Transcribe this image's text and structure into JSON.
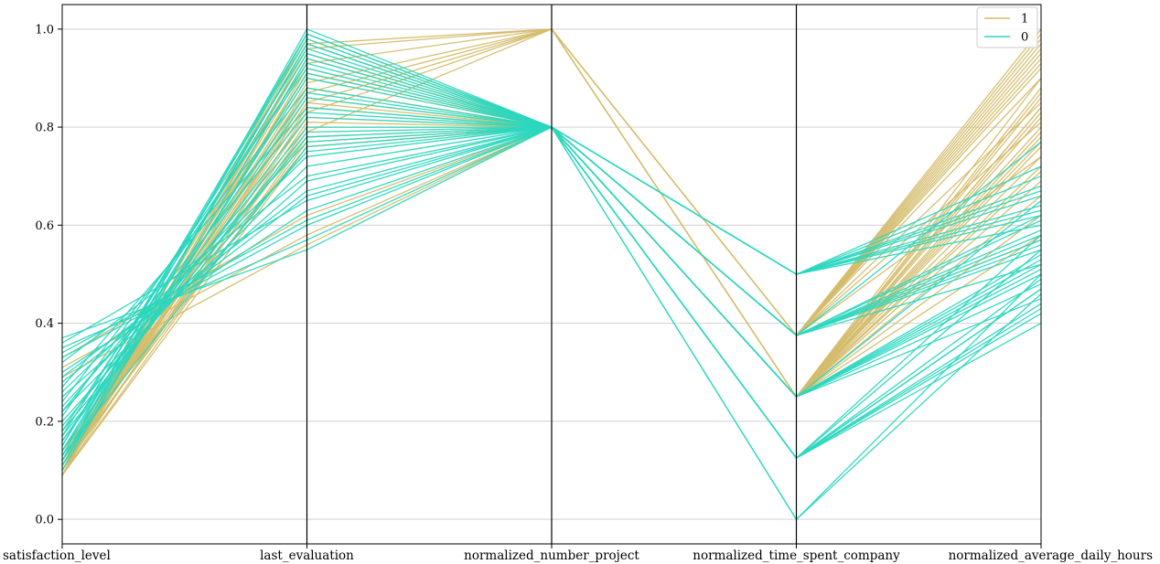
{
  "chart_data": {
    "type": "parallel_coordinates",
    "title": "",
    "axes": [
      "satisfaction_level",
      "last_evaluation",
      "normalized_number_project",
      "normalized_time_spent_company",
      "normalized_average_daily_hours"
    ],
    "ylim": [
      -0.05,
      1.05
    ],
    "yticks": [
      0.0,
      0.2,
      0.4,
      0.6,
      0.8,
      1.0
    ],
    "ytick_labels": [
      "0.0",
      "0.2",
      "0.4",
      "0.6",
      "0.8",
      "1.0"
    ],
    "grid": true,
    "legend": {
      "placement": "top-right"
    },
    "series": [
      {
        "name": "1",
        "color": "#d4bc6a",
        "lines": [
          [
            0.09,
            0.76,
            0.8,
            0.25,
            0.71
          ],
          [
            0.1,
            0.8,
            0.8,
            0.25,
            0.74
          ],
          [
            0.11,
            0.84,
            0.8,
            0.25,
            0.78
          ],
          [
            0.1,
            0.88,
            0.8,
            0.25,
            0.8
          ],
          [
            0.09,
            0.92,
            0.8,
            0.25,
            0.84
          ],
          [
            0.12,
            0.95,
            0.8,
            0.25,
            0.86
          ],
          [
            0.1,
            0.98,
            0.8,
            0.25,
            0.9
          ],
          [
            0.09,
            0.78,
            0.8,
            0.375,
            0.93
          ],
          [
            0.11,
            0.82,
            0.8,
            0.375,
            0.95
          ],
          [
            0.1,
            0.86,
            0.8,
            0.375,
            0.97
          ],
          [
            0.12,
            0.9,
            0.8,
            0.375,
            0.99
          ],
          [
            0.09,
            0.94,
            0.8,
            0.375,
            1.0
          ],
          [
            0.11,
            0.97,
            0.8,
            0.25,
            0.88
          ],
          [
            0.1,
            0.85,
            0.8,
            0.25,
            0.83
          ],
          [
            0.13,
            0.91,
            0.8,
            0.375,
            0.92
          ],
          [
            0.09,
            0.96,
            1.0,
            0.375,
            0.96
          ],
          [
            0.1,
            0.93,
            1.0,
            0.375,
            0.9
          ],
          [
            0.11,
            0.89,
            1.0,
            0.25,
            0.87
          ],
          [
            0.09,
            0.83,
            1.0,
            0.25,
            0.82
          ],
          [
            0.12,
            0.79,
            1.0,
            0.375,
            0.94
          ],
          [
            0.1,
            0.87,
            1.0,
            0.375,
            0.85
          ],
          [
            0.11,
            0.97,
            1.0,
            0.25,
            0.79
          ],
          [
            0.1,
            0.81,
            0.8,
            0.25,
            0.76
          ],
          [
            0.09,
            0.99,
            0.8,
            0.375,
            0.98
          ],
          [
            0.11,
            0.77,
            0.8,
            0.25,
            0.72
          ],
          [
            0.1,
            0.91,
            0.8,
            0.375,
            0.81
          ],
          [
            0.12,
            0.85,
            1.0,
            0.25,
            0.77
          ],
          [
            0.09,
            0.94,
            0.8,
            0.25,
            0.69
          ],
          [
            0.33,
            0.62,
            0.8,
            0.25,
            0.66
          ],
          [
            0.31,
            0.58,
            0.8,
            0.25,
            0.62
          ],
          [
            0.29,
            0.56,
            0.8,
            0.375,
            0.57
          ],
          [
            0.14,
            0.76,
            0.8,
            0.25,
            0.58
          ],
          [
            0.12,
            0.88,
            0.8,
            0.375,
            0.74
          ],
          [
            0.1,
            0.95,
            0.8,
            0.25,
            0.84
          ]
        ]
      },
      {
        "name": "0",
        "color": "#2bd7bf",
        "lines": [
          [
            0.37,
            0.55,
            0.8,
            0.5,
            0.64
          ],
          [
            0.35,
            0.57,
            0.8,
            0.375,
            0.52
          ],
          [
            0.33,
            0.6,
            0.8,
            0.25,
            0.48
          ],
          [
            0.3,
            0.63,
            0.8,
            0.125,
            0.44
          ],
          [
            0.28,
            0.66,
            0.8,
            0.5,
            0.67
          ],
          [
            0.25,
            0.69,
            0.8,
            0.375,
            0.55
          ],
          [
            0.22,
            0.72,
            0.8,
            0.25,
            0.5
          ],
          [
            0.2,
            0.75,
            0.8,
            0.125,
            0.42
          ],
          [
            0.18,
            0.78,
            0.8,
            0.5,
            0.6
          ],
          [
            0.16,
            0.82,
            0.8,
            0.375,
            0.58
          ],
          [
            0.14,
            0.86,
            0.8,
            0.25,
            0.53
          ],
          [
            0.12,
            0.9,
            0.8,
            0.125,
            0.47
          ],
          [
            0.1,
            0.94,
            0.8,
            0.5,
            0.62
          ],
          [
            0.11,
            0.97,
            0.8,
            0.375,
            0.56
          ],
          [
            0.13,
            0.99,
            0.8,
            0.25,
            0.45
          ],
          [
            0.12,
            1.0,
            0.8,
            0.125,
            0.4
          ],
          [
            0.15,
            0.98,
            0.8,
            0.0,
            0.46
          ],
          [
            0.17,
            0.96,
            0.8,
            0.5,
            0.68
          ],
          [
            0.21,
            0.92,
            0.8,
            0.375,
            0.61
          ],
          [
            0.24,
            0.88,
            0.8,
            0.25,
            0.54
          ],
          [
            0.27,
            0.84,
            0.8,
            0.125,
            0.49
          ],
          [
            0.19,
            0.8,
            0.8,
            0.5,
            0.66
          ],
          [
            0.23,
            0.77,
            0.8,
            0.375,
            0.59
          ],
          [
            0.26,
            0.74,
            0.8,
            0.25,
            0.51
          ],
          [
            0.32,
            0.7,
            0.8,
            0.125,
            0.43
          ],
          [
            0.36,
            0.65,
            0.8,
            0.5,
            0.63
          ],
          [
            0.34,
            0.61,
            0.8,
            0.375,
            0.57
          ],
          [
            0.29,
            0.67,
            0.8,
            0.25,
            0.52
          ],
          [
            0.11,
            0.91,
            0.8,
            0.5,
            0.72
          ],
          [
            0.14,
            0.95,
            0.8,
            0.375,
            0.77
          ],
          [
            0.16,
            0.87,
            0.8,
            0.125,
            0.58
          ],
          [
            0.18,
            0.93,
            0.8,
            0.25,
            0.65
          ],
          [
            0.22,
            0.83,
            0.8,
            0.5,
            0.7
          ],
          [
            0.13,
            0.76,
            0.8,
            0.375,
            0.62
          ],
          [
            0.12,
            0.97,
            0.8,
            0.125,
            0.55
          ],
          [
            0.15,
            0.99,
            0.8,
            0.0,
            0.5
          ],
          [
            0.17,
            0.79,
            0.8,
            0.125,
            0.47
          ]
        ]
      }
    ]
  }
}
